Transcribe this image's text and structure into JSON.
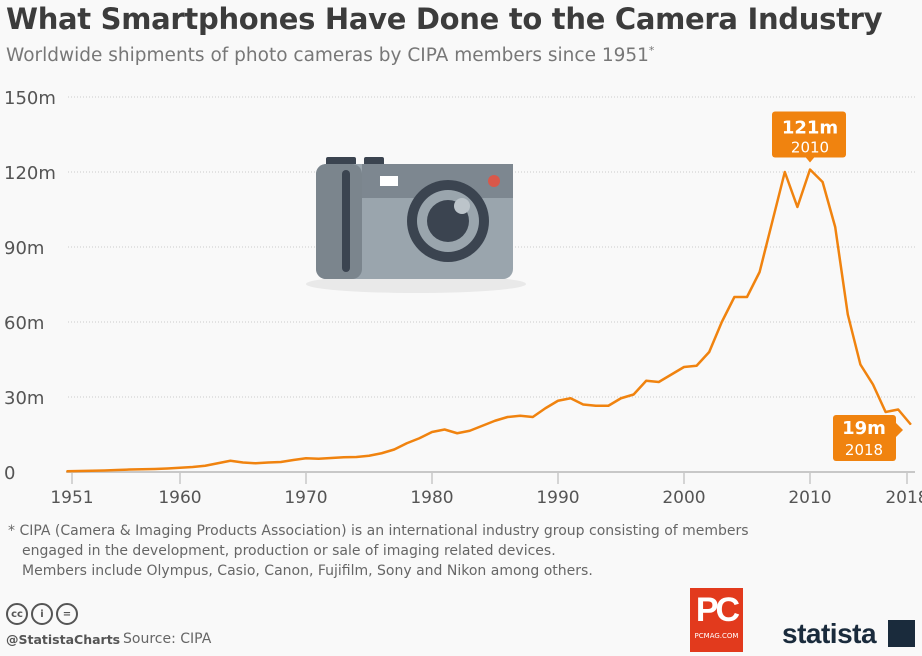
{
  "title": "What Smartphones Have Done to the Camera Industry",
  "subtitle": "Worldwide shipments of photo cameras by CIPA members since 1951",
  "subtitle_mark": "*",
  "footnote": [
    "* CIPA (Camera & Imaging Products Association) is an international industry group consisting of members",
    "engaged in the development, production or sale of imaging related devices.",
    "Members include Olympus, Casio, Canon, Fujifilm, Sony and Nikon among others."
  ],
  "handle": "@StatistaCharts",
  "source": "Source: CIPA",
  "logos": {
    "pcmag": "PC",
    "pcmag_sub": "PCMAG.COM",
    "statista": "statista"
  },
  "colors": {
    "line": "#f0830f",
    "callout": "#f0830f",
    "grid": "#cccccc"
  },
  "icons": [
    "camera-illustration",
    "cc-icon",
    "attribution-icon",
    "no-derivatives-icon"
  ],
  "chart_data": {
    "type": "line",
    "xlabel": "",
    "ylabel": "",
    "xlim": [
      1951,
      2018
    ],
    "ylim": [
      0,
      150
    ],
    "yticks": [
      0,
      30,
      60,
      90,
      120,
      150
    ],
    "ytick_labels": [
      "0",
      "30m",
      "60m",
      "90m",
      "120m",
      "150m"
    ],
    "xticks": [
      1951,
      1960,
      1970,
      1980,
      1990,
      2000,
      2010,
      2018
    ],
    "xtick_labels": [
      "1951",
      "1960",
      "1970",
      "1980",
      "1990",
      "2000",
      "2010",
      "2018"
    ],
    "grid": true,
    "unit": "million units",
    "x": [
      1951,
      1952,
      1953,
      1954,
      1955,
      1956,
      1957,
      1958,
      1959,
      1960,
      1961,
      1962,
      1963,
      1964,
      1965,
      1966,
      1967,
      1968,
      1969,
      1970,
      1971,
      1972,
      1973,
      1974,
      1975,
      1976,
      1977,
      1978,
      1979,
      1980,
      1981,
      1982,
      1983,
      1984,
      1985,
      1986,
      1987,
      1988,
      1989,
      1990,
      1991,
      1992,
      1993,
      1994,
      1995,
      1996,
      1997,
      1998,
      1999,
      2000,
      2001,
      2002,
      2003,
      2004,
      2005,
      2006,
      2007,
      2008,
      2009,
      2010,
      2011,
      2012,
      2013,
      2014,
      2015,
      2016,
      2017,
      2018
    ],
    "values": [
      0.3,
      0.4,
      0.5,
      0.6,
      0.8,
      1.0,
      1.1,
      1.2,
      1.4,
      1.7,
      2.0,
      2.5,
      3.5,
      4.5,
      3.8,
      3.5,
      3.8,
      4.0,
      4.8,
      5.5,
      5.3,
      5.6,
      5.9,
      6.0,
      6.5,
      7.5,
      9.0,
      11.5,
      13.5,
      16.0,
      17.0,
      15.5,
      16.5,
      18.5,
      20.5,
      22.0,
      22.5,
      22.0,
      25.5,
      28.5,
      29.5,
      27.0,
      26.5,
      26.5,
      29.5,
      31.0,
      36.5,
      36.0,
      39.0,
      42.0,
      42.5,
      48.0,
      60.0,
      70.0,
      70.0,
      80.0,
      100.0,
      120.0,
      106.0,
      121.0,
      116.0,
      98.0,
      63.0,
      43.0,
      35.0,
      24.0,
      25.0,
      19.0
    ],
    "annotations": [
      {
        "x": 2010,
        "value": "121m",
        "label": "2010"
      },
      {
        "x": 2018,
        "value": "19m",
        "label": "2018"
      }
    ]
  }
}
